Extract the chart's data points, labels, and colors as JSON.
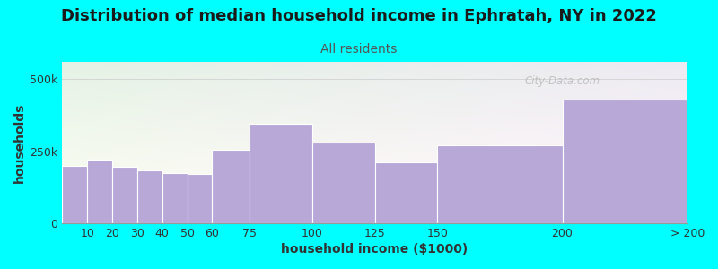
{
  "title": "Distribution of median household income in Ephratah, NY in 2022",
  "subtitle": "All residents",
  "xlabel": "household income ($1000)",
  "ylabel": "households",
  "background_color": "#00FFFF",
  "bar_color": "#b8a8d8",
  "bar_edge_color": "#ffffff",
  "bin_edges": [
    0,
    10,
    20,
    30,
    40,
    50,
    60,
    75,
    100,
    125,
    150,
    200,
    250
  ],
  "bin_labels": [
    "10",
    "20",
    "30",
    "40",
    "50",
    "60",
    "75",
    "100",
    "125",
    "150",
    "200",
    "> 200"
  ],
  "values": [
    200000,
    220000,
    195000,
    185000,
    175000,
    170000,
    255000,
    345000,
    280000,
    210000,
    270000,
    430000
  ],
  "ylim": [
    0,
    560000
  ],
  "yticks": [
    0,
    250000,
    500000
  ],
  "ytick_labels": [
    "0",
    "250k",
    "500k"
  ],
  "watermark": "City-Data.com",
  "title_fontsize": 13,
  "subtitle_fontsize": 10,
  "axis_label_fontsize": 10,
  "tick_fontsize": 9,
  "title_color": "#1a1a1a",
  "subtitle_color": "#555555",
  "axis_label_color": "#333333",
  "tick_color": "#333333"
}
